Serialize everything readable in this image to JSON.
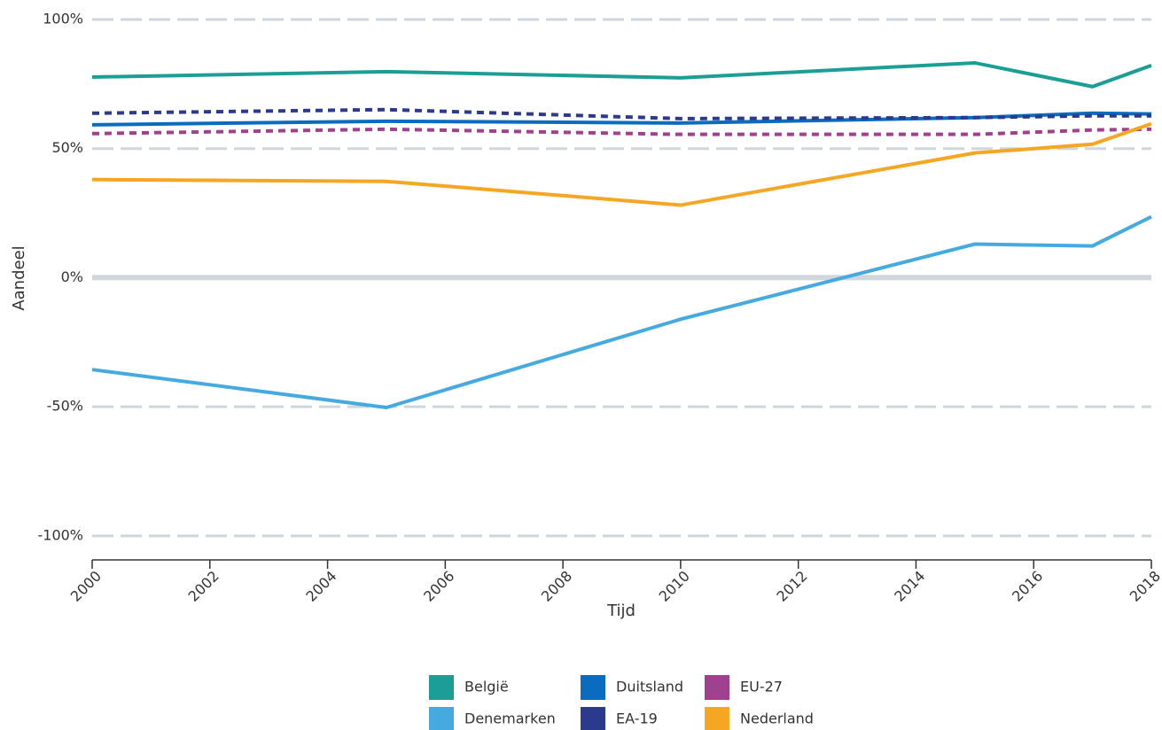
{
  "chart_data": {
    "type": "line",
    "x_label": "Tijd",
    "y_label": "Aandeel",
    "x": [
      2000,
      2005,
      2010,
      2015,
      2017,
      2018
    ],
    "xlim": [
      2000,
      2018
    ],
    "xticks": [
      2000,
      2002,
      2004,
      2006,
      2008,
      2010,
      2012,
      2014,
      2016,
      2018
    ],
    "ylim": [
      -110,
      100
    ],
    "yticks": [
      {
        "value": 100,
        "label": "100%"
      },
      {
        "value": 50,
        "label": "50%"
      },
      {
        "value": 0,
        "label": "0%"
      },
      {
        "value": -50,
        "label": "-50%"
      },
      {
        "value": -100,
        "label": "-100%"
      }
    ],
    "grid": true,
    "legend": "bottom",
    "series": [
      {
        "name": "België",
        "color": "#1a9e96",
        "dashed": false,
        "values": [
          77.7,
          79.8,
          77.4,
          83.2,
          74.0,
          82.2
        ]
      },
      {
        "name": "Denemarken",
        "color": "#45aae0",
        "dashed": false,
        "values": [
          -35.6,
          -50.3,
          -16.1,
          13.0,
          12.3,
          23.6
        ]
      },
      {
        "name": "Duitsland",
        "color": "#0a6cbf",
        "dashed": false,
        "values": [
          59.2,
          60.6,
          59.9,
          62.0,
          63.7,
          63.4
        ]
      },
      {
        "name": "EA-19",
        "color": "#2b3a8c",
        "dashed": true,
        "values": [
          63.7,
          65.1,
          61.6,
          62.0,
          62.7,
          62.7
        ]
      },
      {
        "name": "EU-27",
        "color": "#a0418f",
        "dashed": true,
        "values": [
          55.8,
          57.5,
          55.5,
          55.5,
          57.2,
          57.5
        ]
      },
      {
        "name": "Nederland",
        "color": "#f5a623",
        "dashed": false,
        "values": [
          38.0,
          37.3,
          28.1,
          48.3,
          51.7,
          59.6
        ]
      }
    ]
  }
}
